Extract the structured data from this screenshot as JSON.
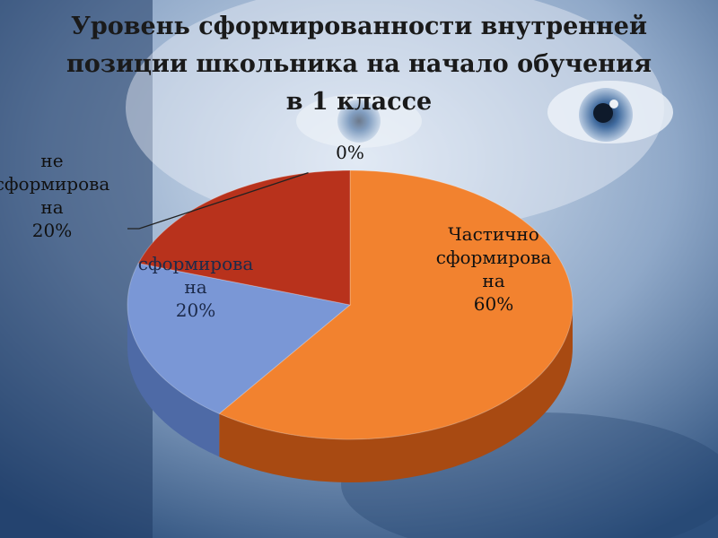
{
  "chart_data": {
    "type": "pie",
    "title_lines": [
      "Уровень сформированности внутренней",
      "позиции школьника на начало обучения",
      "в 1 классе"
    ],
    "slices": [
      {
        "label_lines": [
          "Частично",
          "сформирова",
          "на"
        ],
        "percent_label": "60%",
        "value": 60,
        "color": "#f2822f",
        "side_color": "#a84a12"
      },
      {
        "label_lines": [
          "сформирова",
          "на"
        ],
        "percent_label": "20%",
        "value": 20,
        "color": "#7a97d6",
        "side_color": "#4e6aa6"
      },
      {
        "label_lines": [
          "не",
          "сформирова",
          "на"
        ],
        "percent_label": "20%",
        "value": 20,
        "color": "#b8321c",
        "side_color": "#7a1e10"
      },
      {
        "label_lines": [],
        "percent_label": "0%",
        "value": 0,
        "color": "#d9d9d9",
        "side_color": "#999999"
      }
    ],
    "style": "3d-pie",
    "legend": "none"
  }
}
